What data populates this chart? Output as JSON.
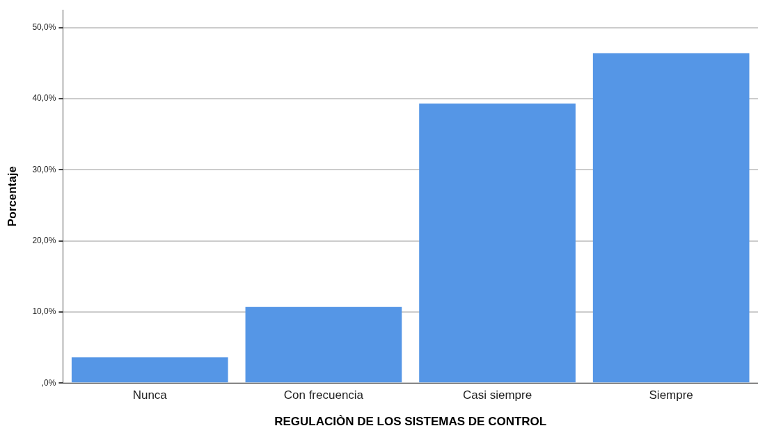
{
  "chart_data": {
    "type": "bar",
    "xlabel": "REGULACIÒN DE LOS SISTEMAS DE CONTROL",
    "ylabel": "Porcentaje",
    "categories": [
      "Nunca",
      "Con frecuencia",
      "Casi siempre",
      "Siempre"
    ],
    "values": [
      3.6,
      10.7,
      39.3,
      46.4
    ],
    "color": "#5596e6",
    "ylim": [
      0,
      52.5
    ],
    "yticks": [
      {
        "value": 0,
        "label": ",0%"
      },
      {
        "value": 10,
        "label": "10,0%"
      },
      {
        "value": 20,
        "label": "20,0%"
      },
      {
        "value": 30,
        "label": "30,0%"
      },
      {
        "value": 40,
        "label": "40,0%"
      },
      {
        "value": 50,
        "label": "50,0%"
      }
    ],
    "grid": "y",
    "legend": false
  }
}
